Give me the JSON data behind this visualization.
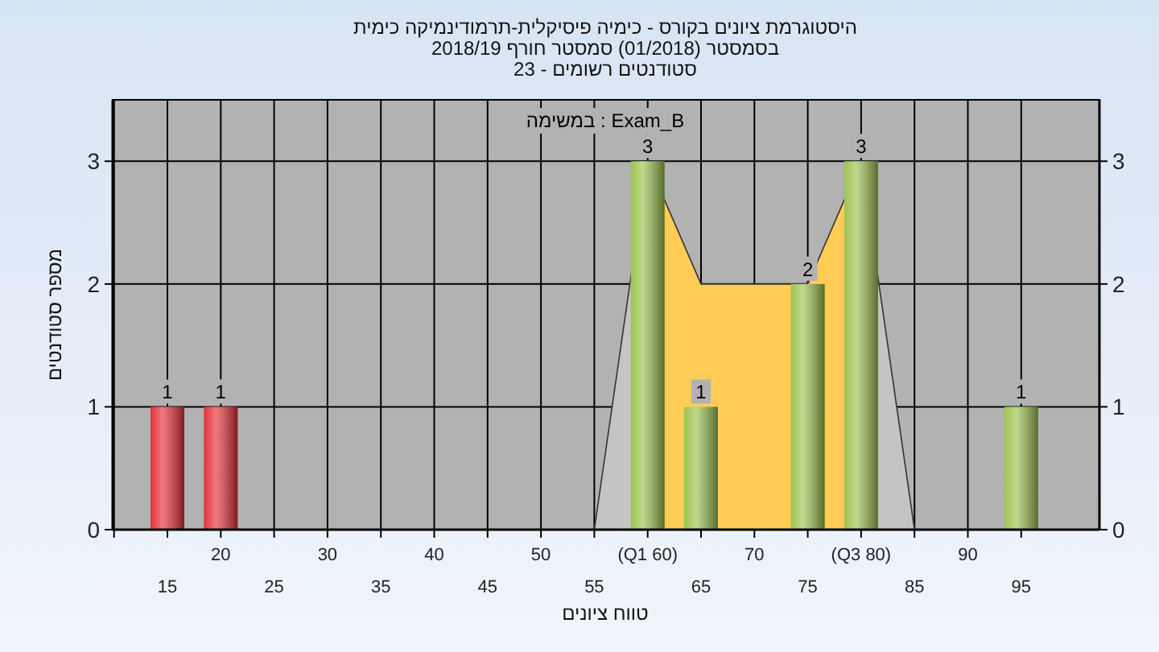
{
  "chart_data": {
    "type": "bar",
    "title": "היסטוגרמת ציונים בקורס - כימיה פיסיקלית-תרמודינמיקה כימית",
    "subtitle": "בסמסטר  (01/2018)  סמסטר חורף 2018/19",
    "annotations": [
      "סטודנטים רשומים - 23",
      "במשימה : Exam_B"
    ],
    "xlabel": "טווח ציונים",
    "ylabel": "מספר סטודנטים",
    "categories": [
      "15",
      "20",
      "25",
      "30",
      "35",
      "40",
      "45",
      "50",
      "55",
      "(Q1 60)",
      "65",
      "70",
      "75",
      "(Q3 80)",
      "85",
      "90",
      "95"
    ],
    "series": [
      {
        "type": "area",
        "color": "#c4c4c4",
        "values": [
          null,
          null,
          null,
          null,
          null,
          null,
          null,
          null,
          0,
          3,
          null,
          null,
          null,
          3,
          0,
          null,
          null
        ]
      },
      {
        "type": "area",
        "color": "#ffcc55",
        "values": [
          null,
          null,
          null,
          null,
          null,
          null,
          null,
          null,
          null,
          3,
          2,
          2,
          2,
          3,
          null,
          null,
          null
        ]
      },
      {
        "colors": [
          "#e8313b",
          "#e8313b",
          "#9cc450",
          "#9cc450",
          "#9cc450",
          "#9cc450",
          "#9cc450",
          "#9cc450",
          "#9cc450",
          "#9cc450",
          "#9cc450",
          "#9cc450",
          "#9cc450",
          "#9cc450",
          "#9cc450",
          "#9cc450",
          "#9cc450"
        ],
        "values": [
          1,
          1,
          0,
          0,
          0,
          0,
          0,
          0,
          0,
          3,
          1,
          0,
          2,
          3,
          0,
          0,
          1
        ],
        "value_labels": [
          "1",
          "1",
          null,
          null,
          null,
          null,
          null,
          null,
          null,
          "3",
          "1",
          null,
          "2",
          "3",
          null,
          null,
          "1"
        ]
      }
    ],
    "ylim": [
      0,
      3.5
    ],
    "yticks": [
      0,
      1,
      2,
      3
    ],
    "y2lim": [
      0,
      3.5
    ],
    "y2ticks": [
      0,
      1,
      2,
      3
    ],
    "grid": true
  }
}
